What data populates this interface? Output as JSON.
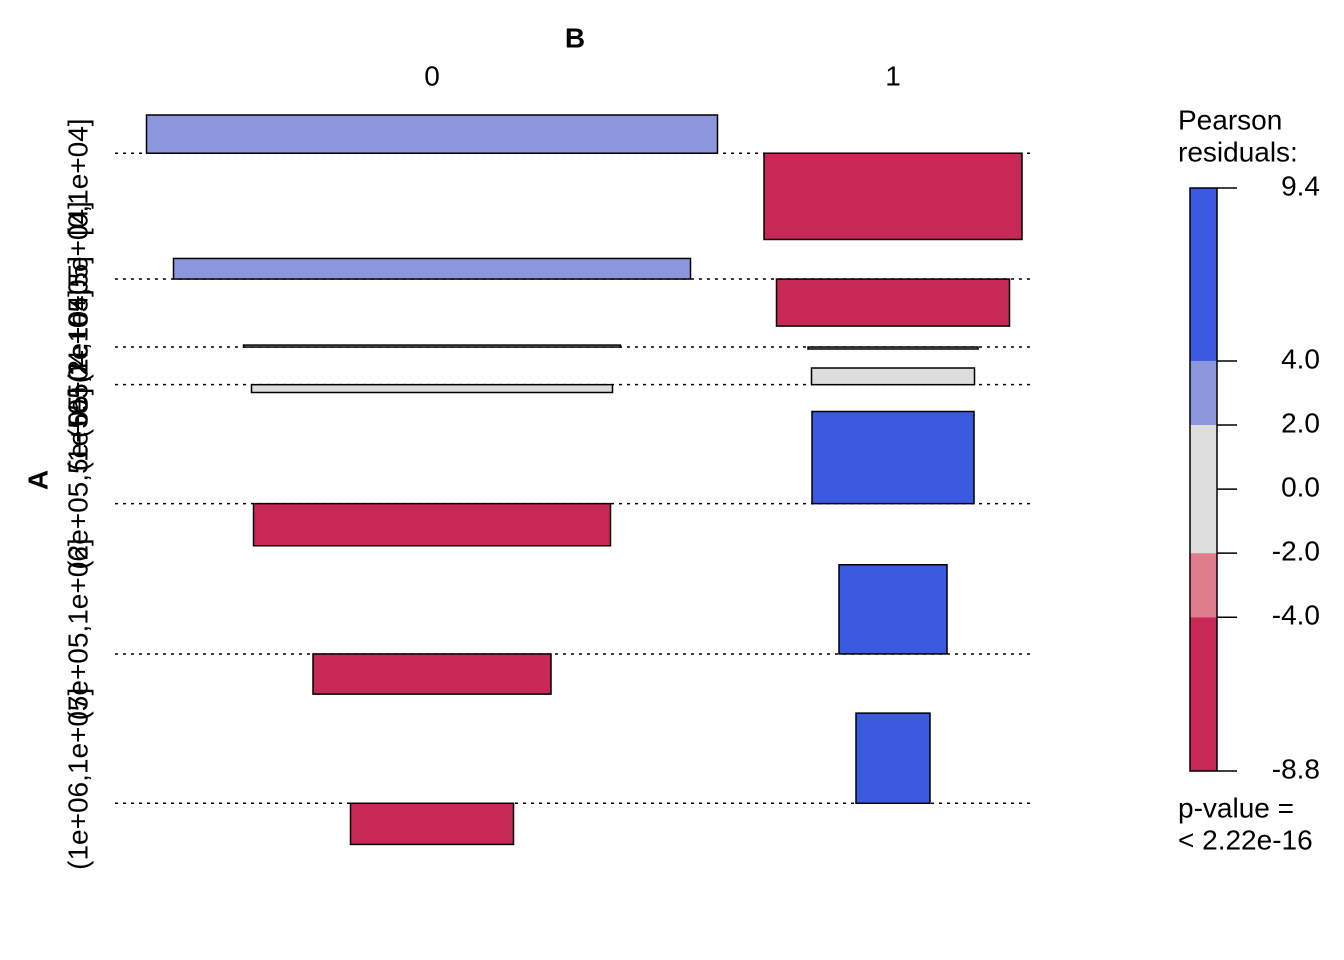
{
  "chart_data": {
    "type": "association",
    "x_title": "B",
    "y_title": "A",
    "categories": [
      "[0,1e+04]",
      "(1e+04,5e+04]",
      "(5e+04,1e+05]",
      "(1e+05,2e+05]",
      "(2e+05,5e+05]",
      "(5e+05,1e+06]",
      "(1e+06,1e+07]"
    ],
    "series": [
      {
        "name": "0",
        "residuals": [
          3.9,
          2.1,
          0.2,
          -0.8,
          -4.3,
          -4.1,
          -4.2
        ],
        "widths": [
          571,
          517,
          377,
          361,
          357,
          238,
          163
        ]
      },
      {
        "name": "1",
        "residuals": [
          -8.8,
          -4.8,
          -0.2,
          1.7,
          9.4,
          9.1,
          9.2
        ],
        "widths": [
          258,
          233,
          170,
          163,
          162,
          108,
          74
        ]
      }
    ],
    "legend": {
      "title": [
        "Pearson",
        "residuals:"
      ],
      "ylim": [
        -8.8,
        9.4
      ],
      "yticks": [
        {
          "value": 9.4,
          "label": "9.4"
        },
        {
          "value": 4,
          "label": "4.0"
        },
        {
          "value": 2,
          "label": "2.0"
        },
        {
          "value": 0,
          "label": "0.0"
        },
        {
          "value": -2,
          "label": "-2.0"
        },
        {
          "value": -4,
          "label": "-4.0"
        },
        {
          "value": -8.8,
          "label": "-8.8"
        }
      ],
      "colors": [
        "#3c5ae0",
        "#8c96dc",
        "#dddddd",
        "#e07d8c",
        "#c82855"
      ],
      "p_value": [
        "p-value =",
        "< 2.22e-16"
      ]
    }
  }
}
